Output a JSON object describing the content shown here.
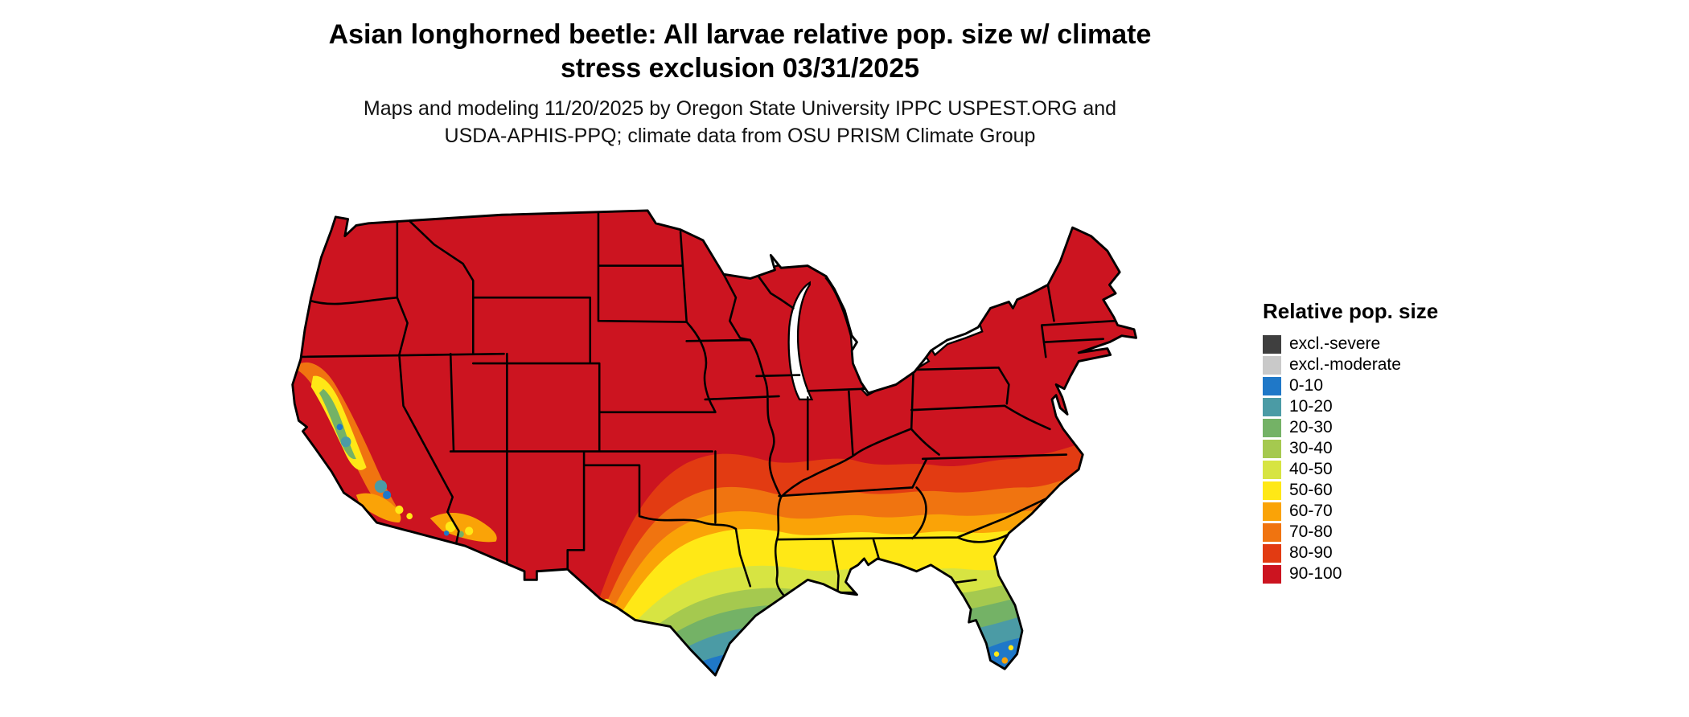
{
  "title": {
    "line1": "Asian longhorned beetle: All larvae relative pop. size w/ climate",
    "line2": "stress exclusion 03/31/2025"
  },
  "subtitle": {
    "line1": "Maps and modeling 11/20/2025 by Oregon State University IPPC USPEST.ORG and",
    "line2": "USDA-APHIS-PPQ; climate data from OSU PRISM Climate Group"
  },
  "map": {
    "region": "Contiguous United States",
    "dominant_class": "90-100"
  },
  "legend": {
    "title": "Relative pop. size",
    "items": [
      {
        "label": "excl.-severe",
        "color": "#3f3f3f"
      },
      {
        "label": "excl.-moderate",
        "color": "#c9c9c9"
      },
      {
        "label": "0-10",
        "color": "#1f78c8"
      },
      {
        "label": "10-20",
        "color": "#4b9ba5"
      },
      {
        "label": "20-30",
        "color": "#74b266"
      },
      {
        "label": "30-40",
        "color": "#a5c94f"
      },
      {
        "label": "40-50",
        "color": "#d7e442"
      },
      {
        "label": "50-60",
        "color": "#ffe816"
      },
      {
        "label": "60-70",
        "color": "#faa307"
      },
      {
        "label": "70-80",
        "color": "#f07410"
      },
      {
        "label": "80-90",
        "color": "#e23b12"
      },
      {
        "label": "90-100",
        "color": "#cc1420"
      }
    ]
  }
}
